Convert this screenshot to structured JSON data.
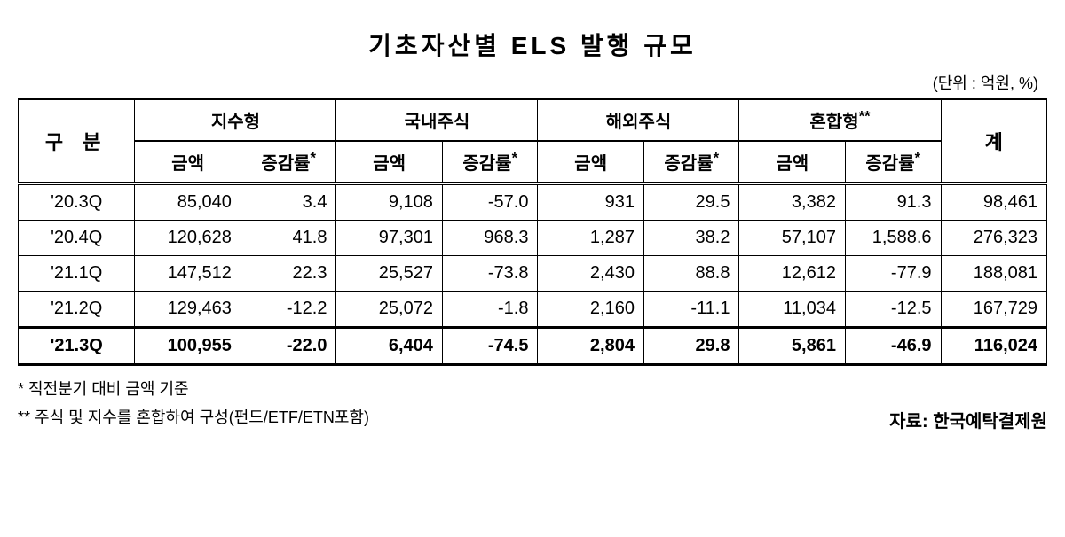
{
  "title": "기초자산별 ELS 발행 규모",
  "unit": "(단위 : 억원, %)",
  "headers": {
    "gubun": "구 분",
    "jisu": "지수형",
    "domestic": "국내주식",
    "foreign": "해외주식",
    "mixed": "혼합형",
    "mixed_sup": "**",
    "total": "계",
    "amount": "금액",
    "rate": "증감률",
    "rate_sup": "*"
  },
  "rows": [
    {
      "q": "'20.3Q",
      "c1": "85,040",
      "c2": "3.4",
      "c3": "9,108",
      "c4": "-57.0",
      "c5": "931",
      "c6": "29.5",
      "c7": "3,382",
      "c8": "91.3",
      "c9": "98,461"
    },
    {
      "q": "'20.4Q",
      "c1": "120,628",
      "c2": "41.8",
      "c3": "97,301",
      "c4": "968.3",
      "c5": "1,287",
      "c6": "38.2",
      "c7": "57,107",
      "c8": "1,588.6",
      "c9": "276,323"
    },
    {
      "q": "'21.1Q",
      "c1": "147,512",
      "c2": "22.3",
      "c3": "25,527",
      "c4": "-73.8",
      "c5": "2,430",
      "c6": "88.8",
      "c7": "12,612",
      "c8": "-77.9",
      "c9": "188,081"
    },
    {
      "q": "'21.2Q",
      "c1": "129,463",
      "c2": "-12.2",
      "c3": "25,072",
      "c4": "-1.8",
      "c5": "2,160",
      "c6": "-11.1",
      "c7": "11,034",
      "c8": "-12.5",
      "c9": "167,729"
    }
  ],
  "boldRow": {
    "q": "'21.3Q",
    "c1": "100,955",
    "c2": "-22.0",
    "c3": "6,404",
    "c4": "-74.5",
    "c5": "2,804",
    "c6": "29.8",
    "c7": "5,861",
    "c8": "-46.9",
    "c9": "116,024"
  },
  "footnote1": "* 직전분기 대비 금액 기준",
  "footnote2": "** 주식 및 지수를 혼합하여 구성(펀드/ETF/ETN포함)",
  "source": "자료: 한국예탁결제원"
}
